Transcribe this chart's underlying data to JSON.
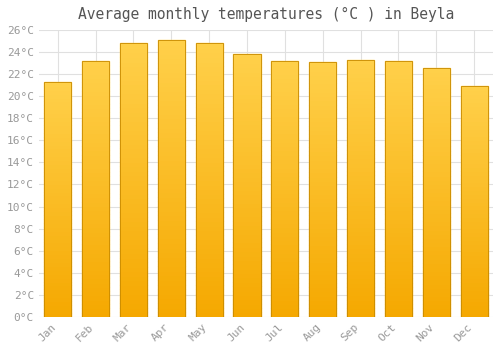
{
  "title": "Average monthly temperatures (°C ) in Beyla",
  "months": [
    "Jan",
    "Feb",
    "Mar",
    "Apr",
    "May",
    "Jun",
    "Jul",
    "Aug",
    "Sep",
    "Oct",
    "Nov",
    "Dec"
  ],
  "values": [
    21.3,
    23.2,
    24.8,
    25.1,
    24.8,
    23.8,
    23.2,
    23.1,
    23.3,
    23.2,
    22.6,
    20.9
  ],
  "bar_color_bottom": "#F5A800",
  "bar_color_top": "#FFD04A",
  "bar_edge_color": "#C88A00",
  "background_color": "#ffffff",
  "grid_color": "#e0e0e0",
  "ylim": [
    0,
    26
  ],
  "yticks": [
    0,
    2,
    4,
    6,
    8,
    10,
    12,
    14,
    16,
    18,
    20,
    22,
    24,
    26
  ],
  "tick_label_color": "#999999",
  "title_color": "#555555",
  "title_fontsize": 10.5,
  "tick_fontsize": 8,
  "bar_width": 0.72
}
